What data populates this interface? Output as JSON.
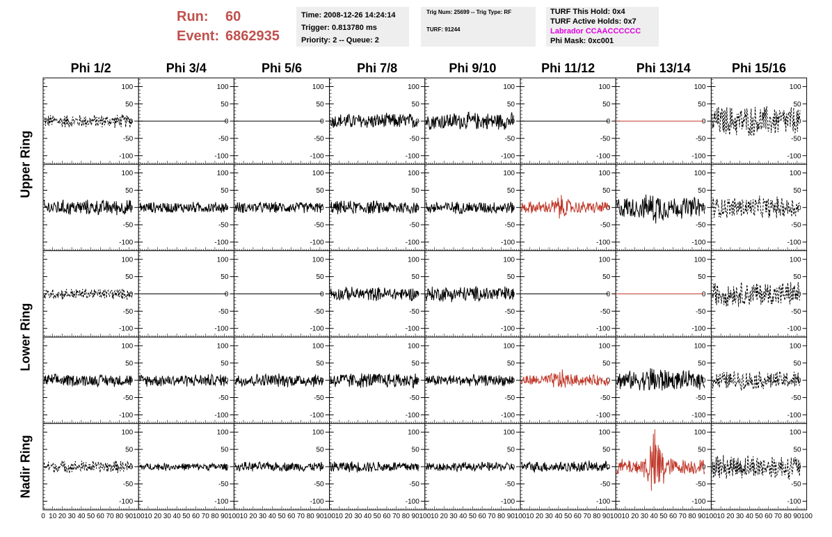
{
  "header": {
    "run_label": "Run:",
    "run_value": "60",
    "event_label": "Event:",
    "event_value": "6862935",
    "time": "Time: 2008-12-26 14:24:14",
    "trigger": "Trigger: 0.813780 ms",
    "priority": "Priority: 2 -- Queue: 2",
    "trig_num": "Trig Num: 25699 -- Trig Type: RF",
    "turf": "TURF: 91244",
    "turf_this_hold": "TURF This Hold: 0x4",
    "turf_active_holds": "TURF Active Holds: 0x7",
    "labrador": "Labrador CCAACCCCCC",
    "phi_mask": "Phi Mask: 0xc001",
    "labrador_color": "#e000e0",
    "run_color": "#c0504d"
  },
  "chart_data": {
    "type": "line",
    "title": "",
    "columns": [
      "Phi 1/2",
      "Phi 3/4",
      "Phi 5/6",
      "Phi 7/8",
      "Phi 9/10",
      "Phi 11/12",
      "Phi 13/14",
      "Phi 15/16"
    ],
    "ring_labels": [
      "Upper Ring",
      "Lower Ring",
      "Nadir Ring"
    ],
    "xlim": [
      0,
      100
    ],
    "ylim": [
      -125,
      125
    ],
    "yticks": [
      -100,
      -50,
      0,
      50,
      100
    ],
    "xticks": [
      0,
      10,
      20,
      30,
      40,
      50,
      60,
      70,
      80,
      90,
      100
    ],
    "xtick_labels": [
      "0",
      "10",
      "20",
      "30",
      "40",
      "50",
      "60",
      "70",
      "80",
      "90",
      "100"
    ],
    "colors": {
      "normal": "#000000",
      "triggered": "#c0392b"
    },
    "rows": [
      {
        "ring": "Upper Ring",
        "panels": [
          {
            "style": "dashed",
            "color": "normal",
            "amp": 22
          },
          {
            "style": "flat",
            "color": "normal",
            "amp": 0
          },
          {
            "style": "flat",
            "color": "normal",
            "amp": 0
          },
          {
            "style": "solid",
            "color": "normal",
            "amp": 25
          },
          {
            "style": "solid",
            "color": "normal",
            "amp": 28
          },
          {
            "style": "flat",
            "color": "normal",
            "amp": 0
          },
          {
            "style": "flat",
            "color": "triggered",
            "amp": 0
          },
          {
            "style": "dashed",
            "color": "normal",
            "amp": 50
          }
        ]
      },
      {
        "ring": "Upper Ring",
        "panels": [
          {
            "style": "solid",
            "color": "normal",
            "amp": 25
          },
          {
            "style": "solid",
            "color": "normal",
            "amp": 18
          },
          {
            "style": "solid",
            "color": "normal",
            "amp": 18
          },
          {
            "style": "solid",
            "color": "normal",
            "amp": 22
          },
          {
            "style": "solid",
            "color": "normal",
            "amp": 20
          },
          {
            "style": "solid",
            "color": "triggered",
            "amp": 20,
            "burst": 40
          },
          {
            "style": "solid",
            "color": "normal",
            "amp": 35,
            "burst": 55
          },
          {
            "style": "dashed",
            "color": "normal",
            "amp": 35
          }
        ]
      },
      {
        "ring": "Lower Ring",
        "panels": [
          {
            "style": "dashed",
            "color": "normal",
            "amp": 18
          },
          {
            "style": "flat",
            "color": "normal",
            "amp": 0
          },
          {
            "style": "flat",
            "color": "normal",
            "amp": 0
          },
          {
            "style": "solid",
            "color": "normal",
            "amp": 22
          },
          {
            "style": "solid",
            "color": "normal",
            "amp": 25
          },
          {
            "style": "flat",
            "color": "normal",
            "amp": 0
          },
          {
            "style": "flat",
            "color": "triggered",
            "amp": 0
          },
          {
            "style": "dashed",
            "color": "normal",
            "amp": 40
          }
        ]
      },
      {
        "ring": "Lower Ring",
        "panels": [
          {
            "style": "solid",
            "color": "normal",
            "amp": 20
          },
          {
            "style": "solid",
            "color": "normal",
            "amp": 20
          },
          {
            "style": "solid",
            "color": "normal",
            "amp": 22
          },
          {
            "style": "solid",
            "color": "normal",
            "amp": 25
          },
          {
            "style": "solid",
            "color": "normal",
            "amp": 18
          },
          {
            "style": "solid",
            "color": "triggered",
            "amp": 18,
            "burst": 35
          },
          {
            "style": "solid",
            "color": "normal",
            "amp": 30,
            "burst": 55
          },
          {
            "style": "dashed",
            "color": "normal",
            "amp": 30
          }
        ]
      },
      {
        "ring": "Nadir Ring",
        "panels": [
          {
            "style": "dashed",
            "color": "normal",
            "amp": 20
          },
          {
            "style": "solid",
            "color": "normal",
            "amp": 12
          },
          {
            "style": "solid",
            "color": "normal",
            "amp": 15
          },
          {
            "style": "solid",
            "color": "normal",
            "amp": 18
          },
          {
            "style": "solid",
            "color": "normal",
            "amp": 15
          },
          {
            "style": "solid",
            "color": "normal",
            "amp": 18
          },
          {
            "style": "solid",
            "color": "triggered",
            "amp": 25,
            "burst": 120
          },
          {
            "style": "dashed",
            "color": "normal",
            "amp": 40
          }
        ]
      }
    ]
  }
}
